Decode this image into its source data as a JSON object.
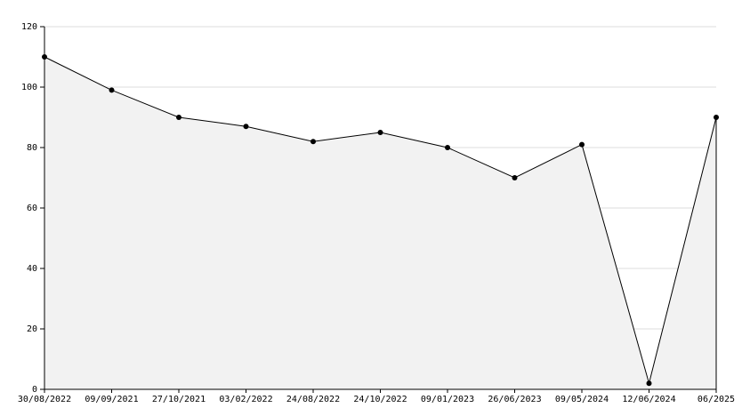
{
  "chart_data": {
    "type": "area",
    "categories": [
      "30/08/2022",
      "09/09/2021",
      "27/10/2021",
      "03/02/2022",
      "24/08/2022",
      "24/10/2022",
      "09/01/2023",
      "26/06/2023",
      "09/05/2024",
      "12/06/2024",
      "06/2025"
    ],
    "values": [
      110,
      99,
      90,
      87,
      82,
      85,
      80,
      70,
      81,
      2,
      90
    ],
    "color": "#000000",
    "fill": "#f2f2f2",
    "ylim": [
      0,
      120
    ],
    "yticks": [
      0,
      20,
      40,
      60,
      80,
      100,
      120
    ],
    "grid": true
  }
}
